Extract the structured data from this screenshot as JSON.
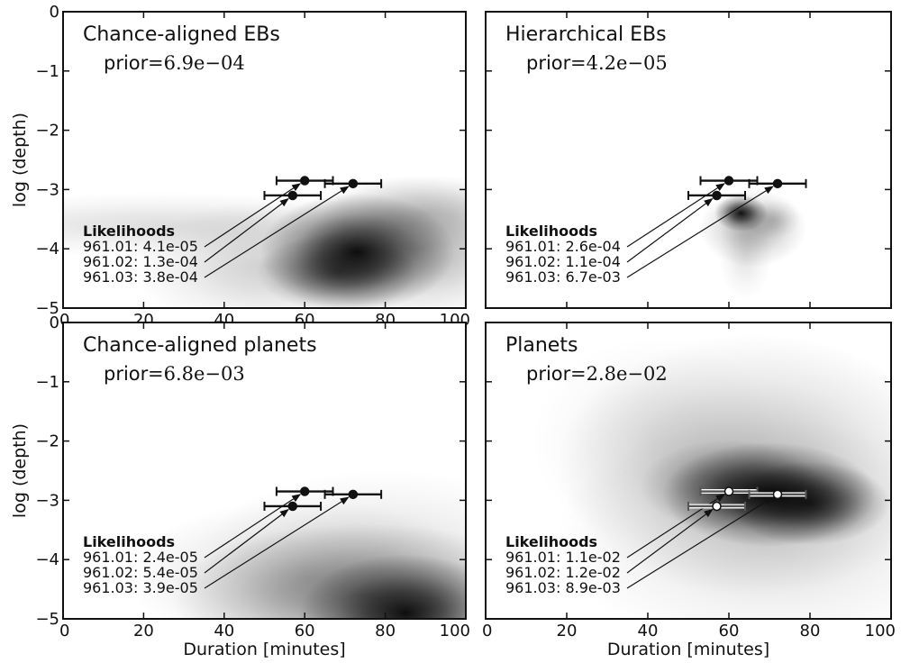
{
  "chart_data": [
    {
      "type": "scatter",
      "title": "Chance-aligned EBs",
      "prior_label": "prior",
      "prior_value": "=6.9e−04",
      "xlim": [
        0,
        100
      ],
      "ylim": [
        -5,
        0
      ],
      "xticks": [
        "0",
        "20",
        "40",
        "60",
        "80",
        "100"
      ],
      "yticks": [
        "0",
        "−1",
        "−2",
        "−3",
        "−4",
        "−5"
      ],
      "xlabel": "",
      "ylabel": "log (depth)",
      "likelihood_title": "Likelihoods",
      "likelihoods": [
        "961.01: 4.1e-05",
        "961.02: 1.3e-04",
        "961.03: 3.8e-04"
      ],
      "points": [
        {
          "x": 60,
          "y": -2.85,
          "xerr": 7
        },
        {
          "x": 57,
          "y": -3.1,
          "xerr": 7
        },
        {
          "x": 72,
          "y": -2.9,
          "xerr": 7
        }
      ],
      "marker": "filled",
      "density_blobs": [
        {
          "x": 73,
          "y": -4.05,
          "sx": 11,
          "sy": 0.45,
          "a": 1.0
        },
        {
          "x": 68,
          "y": -4.4,
          "sx": 9,
          "sy": 0.3,
          "a": 0.6
        },
        {
          "x": 88,
          "y": -4.0,
          "sx": 13,
          "sy": 0.55,
          "a": 0.35
        },
        {
          "x": 25,
          "y": -3.6,
          "sx": 30,
          "sy": 0.25,
          "a": 0.14
        },
        {
          "x": 50,
          "y": -4.3,
          "sx": 15,
          "sy": 0.5,
          "a": 0.2
        },
        {
          "x": 90,
          "y": -3.4,
          "sx": 12,
          "sy": 0.3,
          "a": 0.2
        }
      ]
    },
    {
      "type": "scatter",
      "title": "Hierarchical EBs",
      "prior_label": "prior",
      "prior_value": "=4.2e−05",
      "xlim": [
        0,
        100
      ],
      "ylim": [
        -5,
        0
      ],
      "xticks": [],
      "yticks": [],
      "xlabel": "",
      "ylabel": "",
      "likelihood_title": "Likelihoods",
      "likelihoods": [
        "961.01: 2.6e-04",
        "961.02: 1.1e-04",
        "961.03: 6.7e-03"
      ],
      "points": [
        {
          "x": 60,
          "y": -2.85,
          "xerr": 7
        },
        {
          "x": 57,
          "y": -3.1,
          "xerr": 7
        },
        {
          "x": 72,
          "y": -2.9,
          "xerr": 7
        }
      ],
      "marker": "filled",
      "density_blobs": [
        {
          "x": 63,
          "y": -3.4,
          "sx": 3,
          "sy": 0.14,
          "a": 1.0
        },
        {
          "x": 66,
          "y": -3.65,
          "sx": 6,
          "sy": 0.3,
          "a": 0.35
        },
        {
          "x": 64,
          "y": -4.1,
          "sx": 3,
          "sy": 0.35,
          "a": 0.12
        },
        {
          "x": 71,
          "y": -3.5,
          "sx": 3,
          "sy": 0.15,
          "a": 0.2
        }
      ]
    },
    {
      "type": "scatter",
      "title": "Chance-aligned planets",
      "prior_label": "prior",
      "prior_value": "=6.8e−03",
      "xlim": [
        0,
        100
      ],
      "ylim": [
        -5,
        0
      ],
      "xticks": [
        "0",
        "20",
        "40",
        "60",
        "80",
        "100"
      ],
      "yticks": [
        "0",
        "−1",
        "−2",
        "−3",
        "−4",
        "−5"
      ],
      "xlabel": "Duration [minutes]",
      "ylabel": "log (depth)",
      "likelihood_title": "Likelihoods",
      "likelihoods": [
        "961.01: 2.4e-05",
        "961.02: 5.4e-05",
        "961.03: 3.9e-05"
      ],
      "points": [
        {
          "x": 60,
          "y": -2.85,
          "xerr": 7
        },
        {
          "x": 57,
          "y": -3.1,
          "xerr": 7
        },
        {
          "x": 72,
          "y": -2.9,
          "xerr": 7
        }
      ],
      "marker": "filled",
      "density_blobs": [
        {
          "x": 85,
          "y": -4.9,
          "sx": 12,
          "sy": 0.45,
          "a": 1.0
        },
        {
          "x": 75,
          "y": -4.6,
          "sx": 22,
          "sy": 0.55,
          "a": 0.45
        },
        {
          "x": 60,
          "y": -4.3,
          "sx": 20,
          "sy": 0.6,
          "a": 0.2
        },
        {
          "x": 80,
          "y": -3.8,
          "sx": 20,
          "sy": 0.6,
          "a": 0.12
        }
      ]
    },
    {
      "type": "scatter",
      "title": "Planets",
      "prior_label": "prior",
      "prior_value": "=2.8e−02",
      "xlim": [
        0,
        100
      ],
      "ylim": [
        -5,
        0
      ],
      "xticks": [
        "0",
        "20",
        "40",
        "60",
        "80",
        "100"
      ],
      "yticks": [],
      "xlabel": "Duration [minutes]",
      "ylabel": "",
      "likelihood_title": "Likelihoods",
      "likelihoods": [
        "961.01: 1.1e-02",
        "961.02: 1.2e-02",
        "961.03: 8.9e-03"
      ],
      "points": [
        {
          "x": 60,
          "y": -2.85,
          "xerr": 7
        },
        {
          "x": 57,
          "y": -3.1,
          "xerr": 7
        },
        {
          "x": 72,
          "y": -2.9,
          "xerr": 7
        }
      ],
      "marker": "open",
      "density_blobs": [
        {
          "x": 70,
          "y": -2.9,
          "sx": 12,
          "sy": 0.4,
          "a": 1.0
        },
        {
          "x": 80,
          "y": -3.05,
          "sx": 9,
          "sy": 0.32,
          "a": 0.85
        },
        {
          "x": 60,
          "y": -2.75,
          "sx": 10,
          "sy": 0.35,
          "a": 0.45
        },
        {
          "x": 66,
          "y": -2.4,
          "sx": 22,
          "sy": 1.0,
          "a": 0.28
        },
        {
          "x": 70,
          "y": -3.6,
          "sx": 24,
          "sy": 0.9,
          "a": 0.15
        },
        {
          "x": 42,
          "y": -2.0,
          "sx": 14,
          "sy": 0.8,
          "a": 0.08
        }
      ]
    }
  ]
}
